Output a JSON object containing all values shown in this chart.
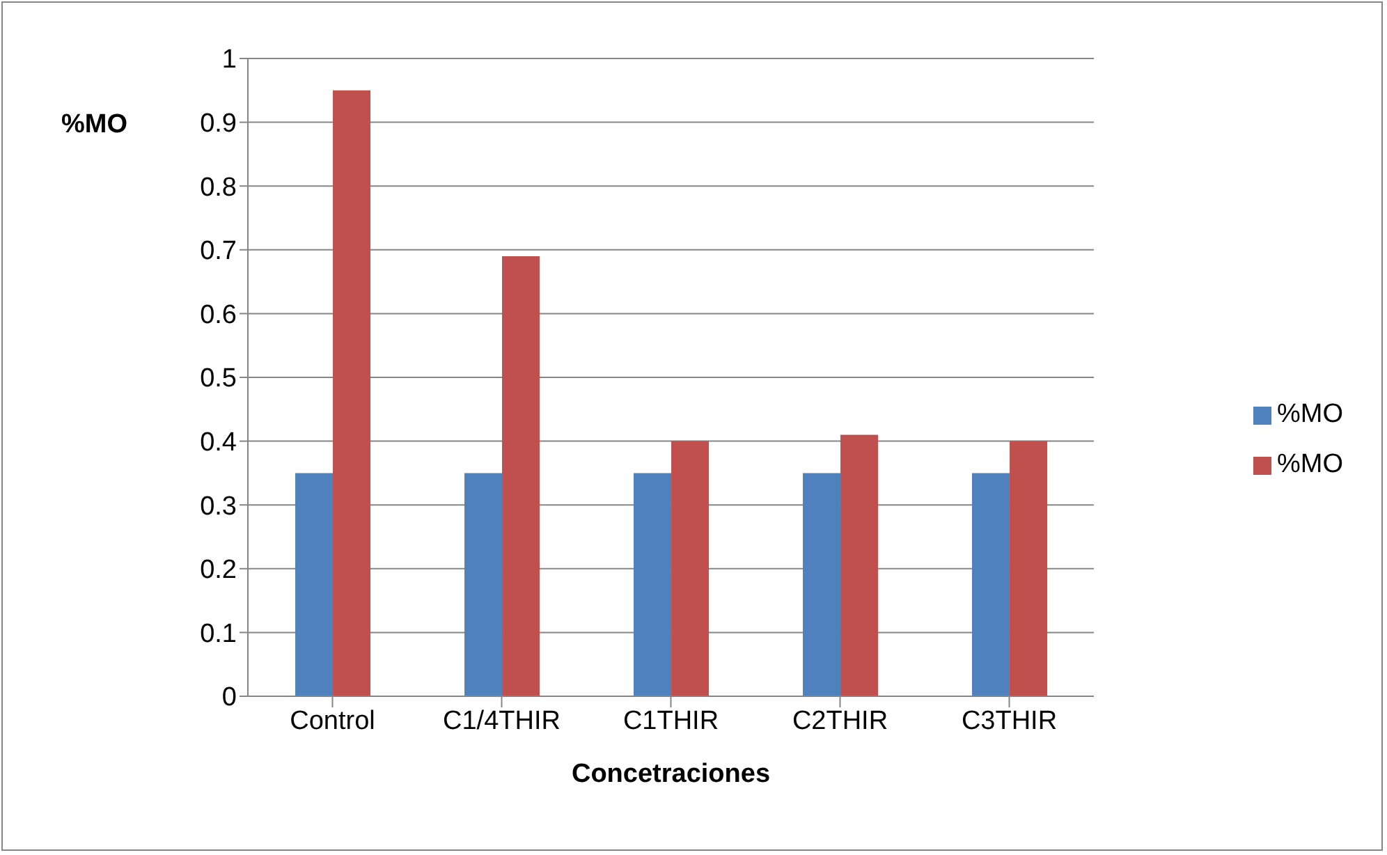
{
  "chart_data": {
    "type": "bar",
    "xlabel": "Concetraciones",
    "ylabel": "%MO",
    "categories": [
      "Control",
      "C1/4THIR",
      "C1THIR",
      "C2THIR",
      "C3THIR"
    ],
    "series": [
      {
        "name": "%MO",
        "color": "#4f81bd",
        "values": [
          0.35,
          0.35,
          0.35,
          0.35,
          0.35
        ]
      },
      {
        "name": "%MO",
        "color": "#c0504d",
        "values": [
          0.95,
          0.69,
          0.4,
          0.41,
          0.4
        ]
      }
    ],
    "ylim": [
      0,
      1
    ],
    "yticks": [
      0,
      0.1,
      0.2,
      0.3,
      0.4,
      0.5,
      0.6,
      0.7,
      0.8,
      0.9,
      1
    ],
    "grid": "y",
    "legend": "right"
  }
}
